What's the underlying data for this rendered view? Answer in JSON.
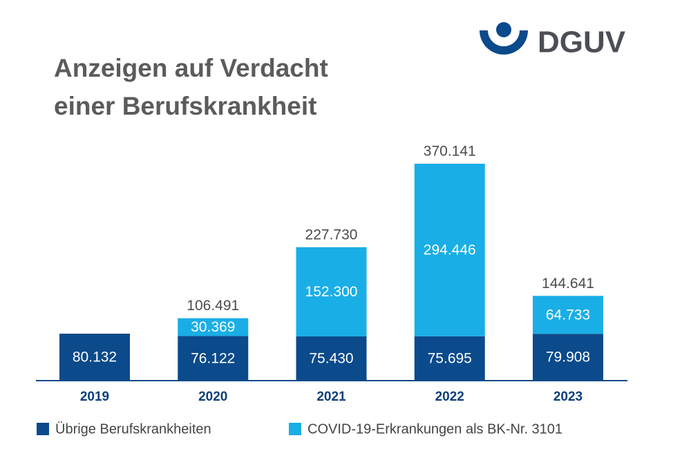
{
  "chart_data": {
    "type": "stacked-bar",
    "logo": "DGUV",
    "title": [
      "Anzeigen auf Verdacht",
      "einer Berufskrankheit"
    ],
    "categories": [
      "2019",
      "2020",
      "2021",
      "2022",
      "2023"
    ],
    "series": [
      {
        "name": "Übrige Berufskrankheiten",
        "color": "#0b4a8b",
        "values": [
          80132,
          76122,
          75430,
          75695,
          79908
        ],
        "value_labels": [
          "80.132",
          "76.122",
          "75.430",
          "75.695",
          "79.908"
        ]
      },
      {
        "name": "COVID-19-Erkrankungen als BK-Nr. 3101",
        "color": "#1aaee6",
        "values": [
          null,
          30369,
          152300,
          294446,
          64733
        ],
        "value_labels": [
          null,
          "30.369",
          "152.300",
          "294.446",
          "64.733"
        ]
      }
    ],
    "totals": {
      "values": [
        null,
        106491,
        227730,
        370141,
        144641
      ],
      "value_labels": [
        null,
        "106.491",
        "227.730",
        "370.141",
        "144.641"
      ]
    }
  }
}
